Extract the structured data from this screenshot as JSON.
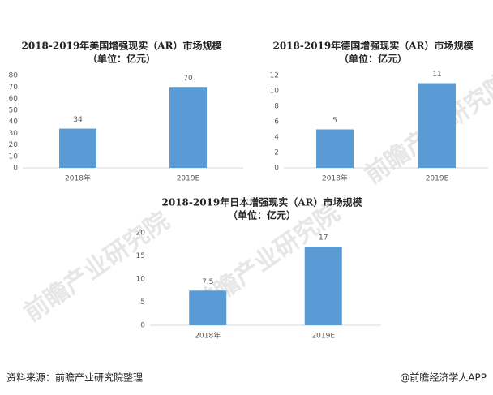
{
  "chart_data": [
    {
      "type": "bar",
      "title": "2018-2019年美国增强现实（AR）市场规模",
      "subtitle": "（单位：亿元）",
      "categories": [
        "2018年",
        "2019E"
      ],
      "values": [
        34,
        70
      ],
      "color": "#5b9bd5",
      "ylim": [
        0,
        80
      ],
      "yticks": [
        0,
        10,
        20,
        30,
        40,
        50,
        60,
        70,
        80
      ],
      "grid": false
    },
    {
      "type": "bar",
      "title": "2018-2019年德国增强现实（AR）市场规模",
      "subtitle": "（单位：亿元）",
      "categories": [
        "2018年",
        "2019E"
      ],
      "values": [
        5,
        11
      ],
      "color": "#5b9bd5",
      "ylim": [
        0,
        12
      ],
      "yticks": [
        0,
        2,
        4,
        6,
        8,
        10,
        12
      ],
      "grid": false
    },
    {
      "type": "bar",
      "title": "2018-2019年日本增强现实（AR）市场规模",
      "subtitle": "（单位：亿元）",
      "categories": [
        "2018年",
        "2019E"
      ],
      "values": [
        7.5,
        17
      ],
      "color": "#5b9bd5",
      "ylim": [
        0,
        20
      ],
      "yticks": [
        0,
        5,
        10,
        15,
        20
      ],
      "grid": false
    }
  ],
  "watermark": "前瞻产业研究院",
  "footer": {
    "source": "资料来源：前瞻产业研究院整理",
    "brand": "@前瞻经济学人APP"
  }
}
